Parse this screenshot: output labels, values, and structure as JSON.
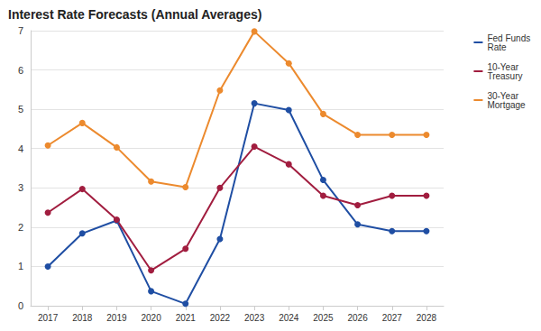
{
  "chart_data": {
    "type": "line",
    "title": "Interest Rate Forecasts (Annual Averages)",
    "categories": [
      "2017",
      "2018",
      "2019",
      "2020",
      "2021",
      "2022",
      "2023",
      "2024",
      "2025",
      "2026",
      "2027",
      "2028"
    ],
    "series": [
      {
        "name": "Fed Funds Rate",
        "color": "#1f4ea3",
        "values": [
          1.0,
          1.84,
          2.17,
          0.37,
          0.05,
          1.7,
          5.15,
          4.98,
          3.2,
          2.07,
          1.9,
          1.9
        ]
      },
      {
        "name": "10-Year Treasury",
        "color": "#a11d3f",
        "values": [
          2.37,
          2.97,
          2.19,
          0.9,
          1.45,
          3.0,
          4.05,
          3.6,
          2.8,
          2.56,
          2.8,
          2.8
        ]
      },
      {
        "name": "30-Year Mortgage",
        "color": "#ec8a2e",
        "values": [
          4.08,
          4.65,
          4.03,
          3.16,
          3.02,
          5.48,
          6.98,
          6.17,
          4.88,
          4.35,
          4.35,
          4.35
        ]
      }
    ],
    "ylim": [
      0,
      7
    ],
    "yticks": [
      0,
      1,
      2,
      3,
      4,
      5,
      6,
      7
    ],
    "grid": true,
    "legend": "right",
    "marker": "circle"
  }
}
